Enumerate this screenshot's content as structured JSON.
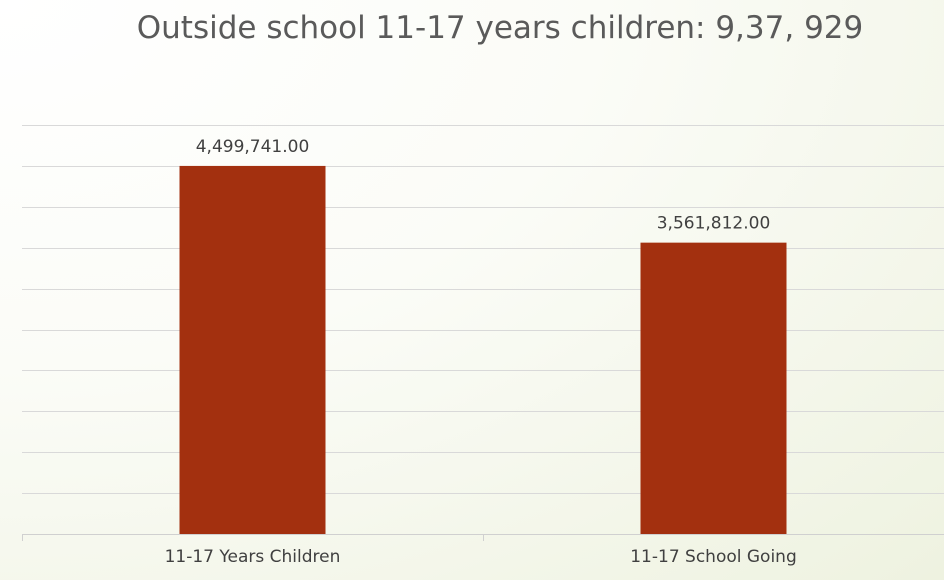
{
  "chart_data": {
    "type": "bar",
    "title": "Outside school 11-17 years children: 9,37, 929",
    "categories": [
      "11-17 Years Children",
      "11-17 School Going"
    ],
    "values": [
      4499741,
      3561812
    ],
    "data_labels": [
      "4,499,741.00",
      "3,561,812.00"
    ],
    "ylim": [
      0,
      5000000
    ],
    "grid": true,
    "legend": "none",
    "bar_color": "#a3300f",
    "xlabel": "",
    "ylabel": ""
  }
}
